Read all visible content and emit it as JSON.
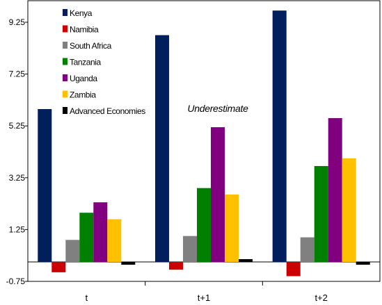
{
  "chart_data": {
    "type": "bar",
    "categories": [
      "t",
      "t+1",
      "t+2"
    ],
    "series": [
      {
        "name": "Kenya",
        "color": "#001F5C",
        "values": [
          5.9,
          8.75,
          9.7
        ]
      },
      {
        "name": "Namibia",
        "color": "#CC0000",
        "values": [
          -0.4,
          -0.3,
          -0.55
        ]
      },
      {
        "name": "South Africa",
        "color": "#808080",
        "values": [
          0.85,
          1.0,
          0.95
        ]
      },
      {
        "name": "Tanzania",
        "color": "#008000",
        "values": [
          1.9,
          2.85,
          3.7
        ]
      },
      {
        "name": "Uganda",
        "color": "#800080",
        "values": [
          2.3,
          5.2,
          5.55
        ]
      },
      {
        "name": "Zambia",
        "color": "#FFC000",
        "values": [
          1.65,
          2.6,
          4.0
        ]
      },
      {
        "name": "Advanced Economies",
        "color": "#000000",
        "values": [
          -0.08,
          0.1,
          -0.08
        ]
      }
    ],
    "yticks": [
      -0.75,
      1.25,
      3.25,
      5.25,
      7.25,
      9.25
    ],
    "ytick_labels": [
      "-0.75",
      "1.25",
      "3.25",
      "5.25",
      "7.25",
      "9.25"
    ],
    "ylim": [
      -0.75,
      10.0
    ],
    "annotation": "Underestimate",
    "legend_position": "top-left",
    "grid": false,
    "title": "",
    "xlabel": "",
    "ylabel": ""
  }
}
